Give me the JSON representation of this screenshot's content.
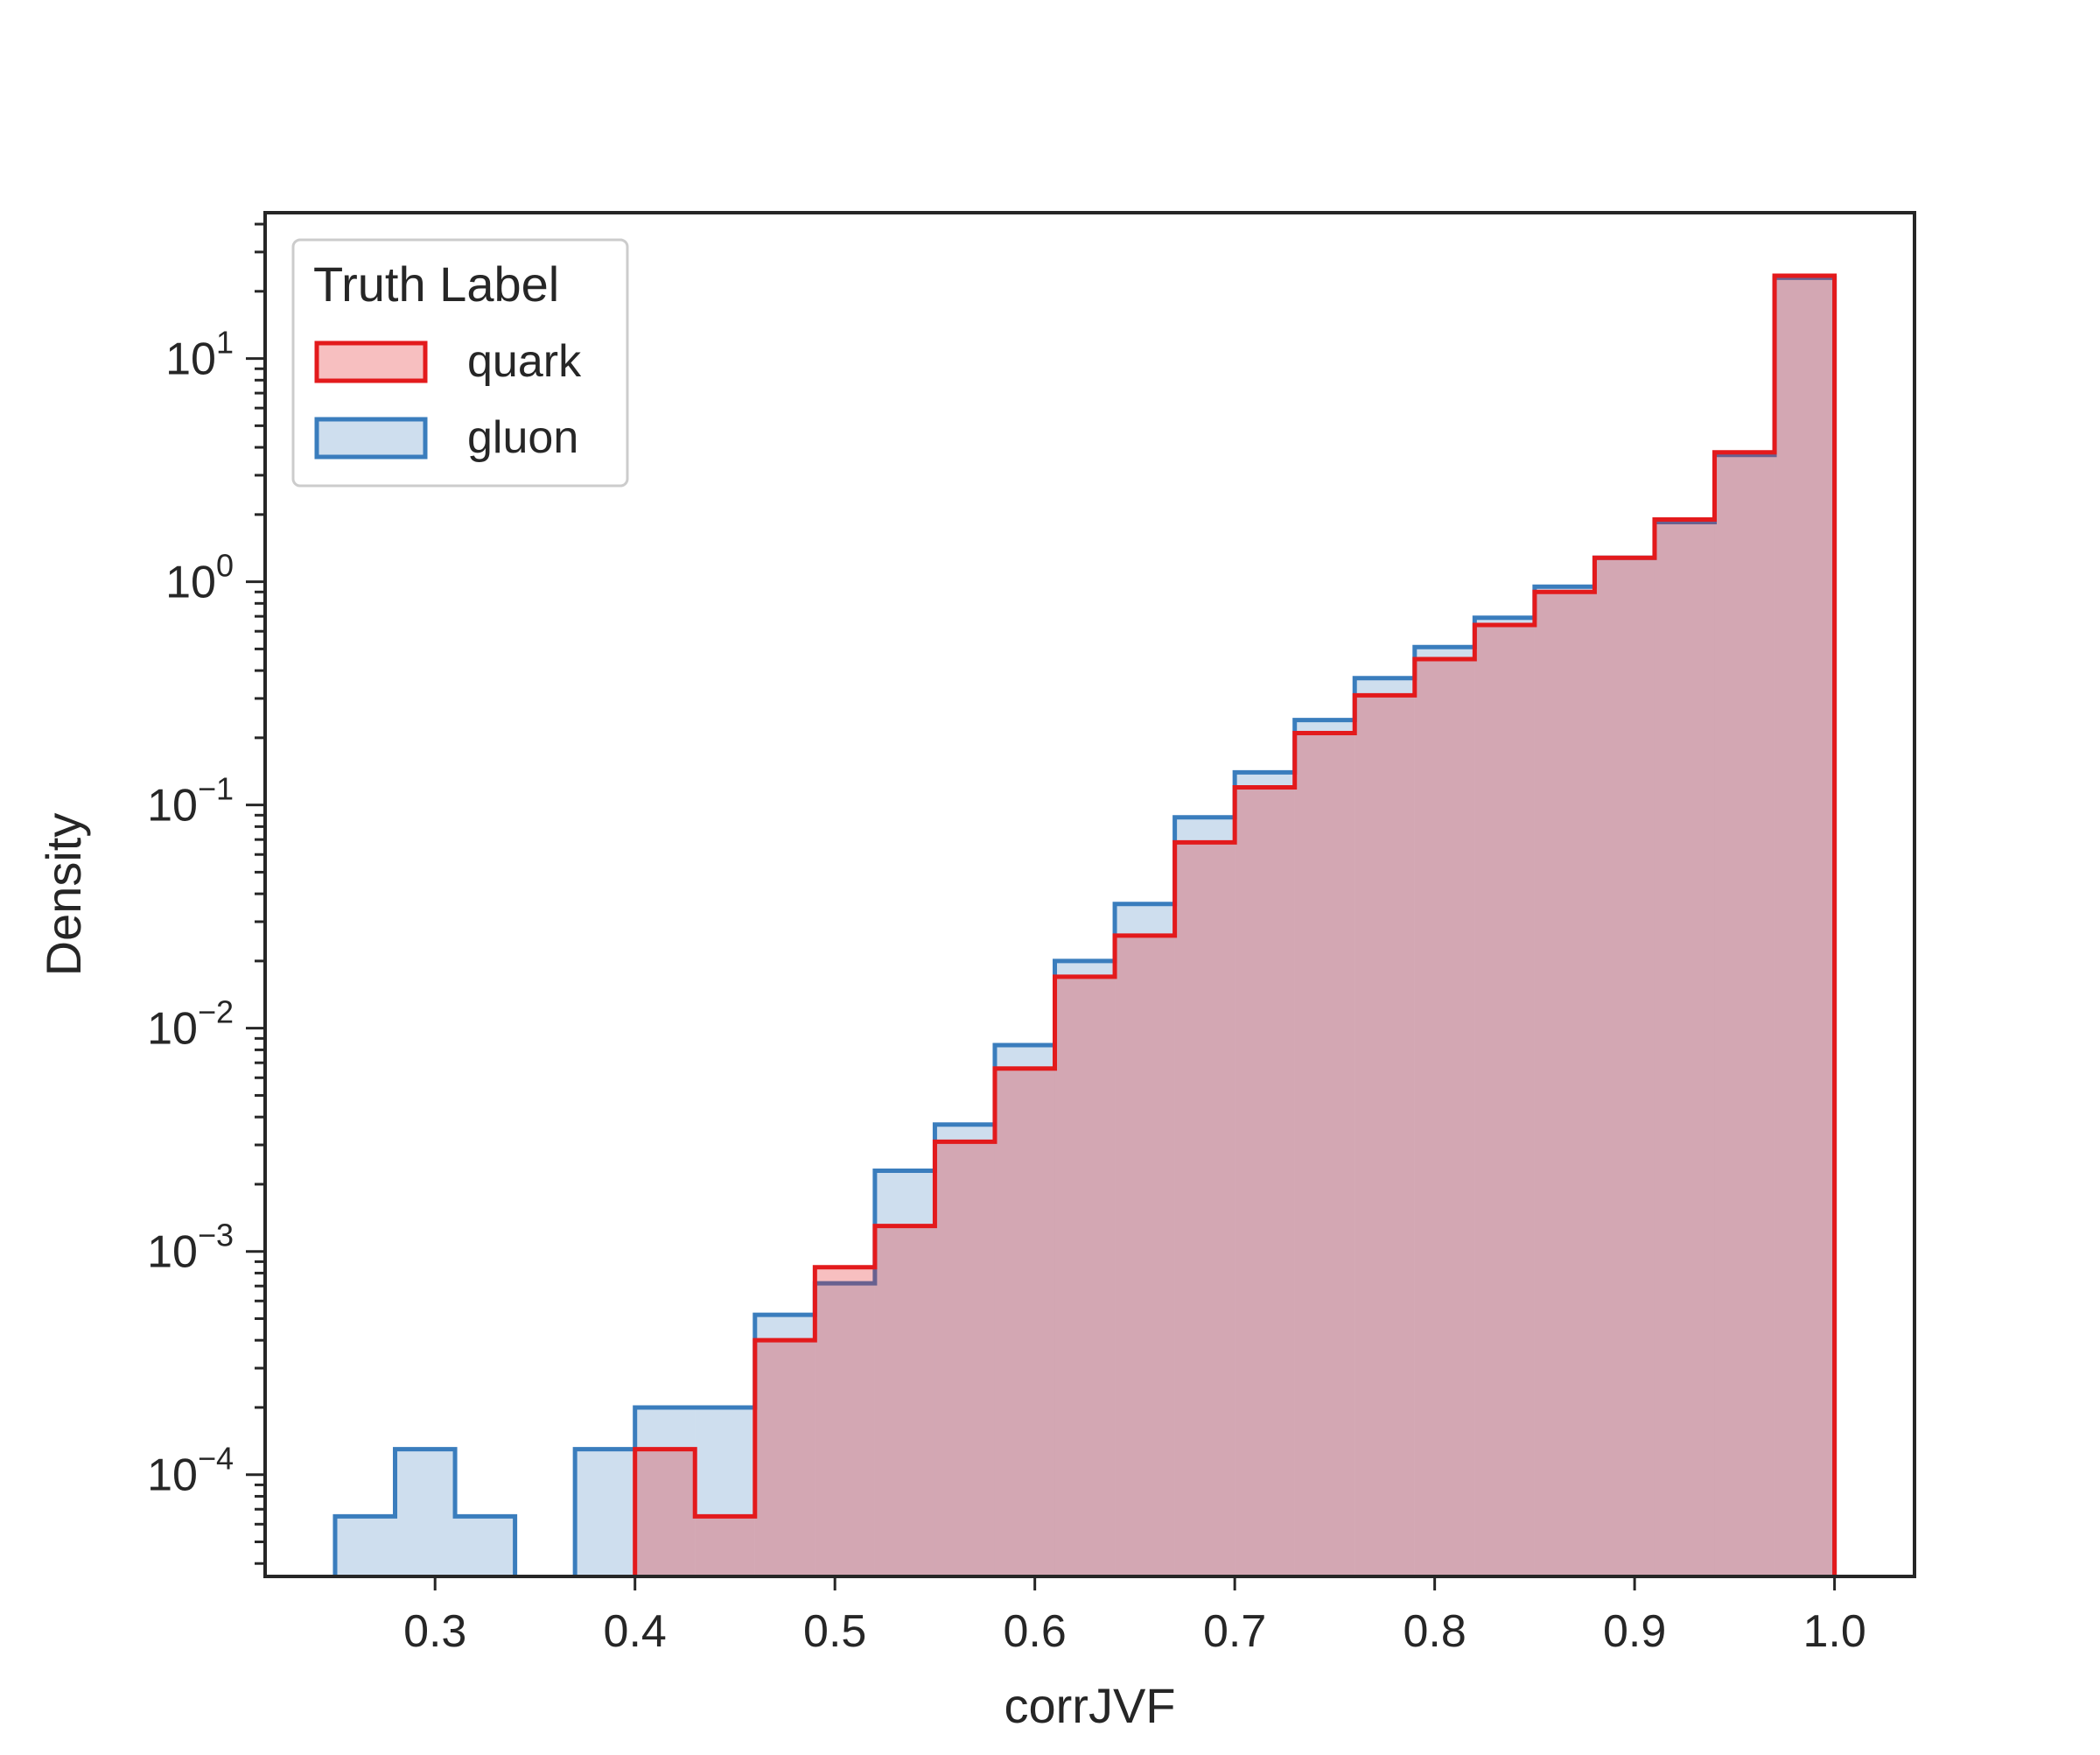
{
  "chart_data": {
    "type": "histogram",
    "xlabel": "corrJVF",
    "ylabel": "Density",
    "yscale": "log",
    "xlim": [
      0.215,
      1.04
    ],
    "ylim": [
      3.5e-05,
      45
    ],
    "xticks": [
      {
        "value": 0.3,
        "label": "0.3"
      },
      {
        "value": 0.4,
        "label": "0.4"
      },
      {
        "value": 0.5,
        "label": "0.5"
      },
      {
        "value": 0.6,
        "label": "0.6"
      },
      {
        "value": 0.7,
        "label": "0.7"
      },
      {
        "value": 0.8,
        "label": "0.8"
      },
      {
        "value": 0.9,
        "label": "0.9"
      },
      {
        "value": 1.0,
        "label": "1.0"
      }
    ],
    "yticks": [
      {
        "value": 0.0001,
        "base": "10",
        "exp": "−4"
      },
      {
        "value": 0.001,
        "base": "10",
        "exp": "−3"
      },
      {
        "value": 0.01,
        "base": "10",
        "exp": "−2"
      },
      {
        "value": 0.1,
        "base": "10",
        "exp": "−1"
      },
      {
        "value": 1,
        "base": "10",
        "exp": "0"
      },
      {
        "value": 10,
        "base": "10",
        "exp": "1"
      }
    ],
    "grid": false,
    "legend": {
      "title": "Truth Label",
      "placement": "top-left"
    },
    "series": [
      {
        "name": "quark",
        "line_color": "#e31a1c",
        "fill_color": "rgba(227,26,28,0.28)",
        "bins": [
          {
            "x0": 0.4,
            "x1": 0.43,
            "y": 0.00013
          },
          {
            "x0": 0.43,
            "x1": 0.46,
            "y": 6.5e-05
          },
          {
            "x0": 0.46,
            "x1": 0.49,
            "y": 0.0004
          },
          {
            "x0": 0.49,
            "x1": 0.52,
            "y": 0.00085
          },
          {
            "x0": 0.52,
            "x1": 0.55,
            "y": 0.0013
          },
          {
            "x0": 0.55,
            "x1": 0.58,
            "y": 0.0031
          },
          {
            "x0": 0.58,
            "x1": 0.61,
            "y": 0.0066
          },
          {
            "x0": 0.61,
            "x1": 0.64,
            "y": 0.017
          },
          {
            "x0": 0.64,
            "x1": 0.67,
            "y": 0.026
          },
          {
            "x0": 0.67,
            "x1": 0.7,
            "y": 0.068
          },
          {
            "x0": 0.7,
            "x1": 0.73,
            "y": 0.12
          },
          {
            "x0": 0.73,
            "x1": 0.76,
            "y": 0.21
          },
          {
            "x0": 0.76,
            "x1": 0.79,
            "y": 0.31
          },
          {
            "x0": 0.79,
            "x1": 0.82,
            "y": 0.45
          },
          {
            "x0": 0.82,
            "x1": 0.85,
            "y": 0.64
          },
          {
            "x0": 0.85,
            "x1": 0.88,
            "y": 0.9
          },
          {
            "x0": 0.88,
            "x1": 0.91,
            "y": 1.28
          },
          {
            "x0": 0.91,
            "x1": 0.94,
            "y": 1.9
          },
          {
            "x0": 0.94,
            "x1": 0.97,
            "y": 3.8
          },
          {
            "x0": 0.97,
            "x1": 1.0,
            "y": 23.5
          }
        ]
      },
      {
        "name": "gluon",
        "line_color": "#3a7dbd",
        "fill_color": "rgba(58,125,189,0.25)",
        "bins": [
          {
            "x0": 0.25,
            "x1": 0.28,
            "y": 6.5e-05
          },
          {
            "x0": 0.28,
            "x1": 0.31,
            "y": 0.00013
          },
          {
            "x0": 0.31,
            "x1": 0.34,
            "y": 6.5e-05
          },
          {
            "x0": 0.34,
            "x1": 0.37,
            "y": 0
          },
          {
            "x0": 0.37,
            "x1": 0.4,
            "y": 0.00013
          },
          {
            "x0": 0.4,
            "x1": 0.43,
            "y": 0.0002
          },
          {
            "x0": 0.43,
            "x1": 0.46,
            "y": 0.0002
          },
          {
            "x0": 0.46,
            "x1": 0.49,
            "y": 0.00052
          },
          {
            "x0": 0.49,
            "x1": 0.52,
            "y": 0.00072
          },
          {
            "x0": 0.52,
            "x1": 0.55,
            "y": 0.0023
          },
          {
            "x0": 0.55,
            "x1": 0.58,
            "y": 0.0037
          },
          {
            "x0": 0.58,
            "x1": 0.61,
            "y": 0.0084
          },
          {
            "x0": 0.61,
            "x1": 0.64,
            "y": 0.02
          },
          {
            "x0": 0.64,
            "x1": 0.67,
            "y": 0.036
          },
          {
            "x0": 0.67,
            "x1": 0.7,
            "y": 0.088
          },
          {
            "x0": 0.7,
            "x1": 0.73,
            "y": 0.14
          },
          {
            "x0": 0.73,
            "x1": 0.76,
            "y": 0.24
          },
          {
            "x0": 0.76,
            "x1": 0.79,
            "y": 0.37
          },
          {
            "x0": 0.79,
            "x1": 0.82,
            "y": 0.51
          },
          {
            "x0": 0.82,
            "x1": 0.85,
            "y": 0.69
          },
          {
            "x0": 0.85,
            "x1": 0.88,
            "y": 0.95
          },
          {
            "x0": 0.88,
            "x1": 0.91,
            "y": 1.28
          },
          {
            "x0": 0.91,
            "x1": 0.94,
            "y": 1.85
          },
          {
            "x0": 0.94,
            "x1": 0.97,
            "y": 3.7
          },
          {
            "x0": 0.97,
            "x1": 1.0,
            "y": 23.0
          }
        ]
      }
    ]
  }
}
